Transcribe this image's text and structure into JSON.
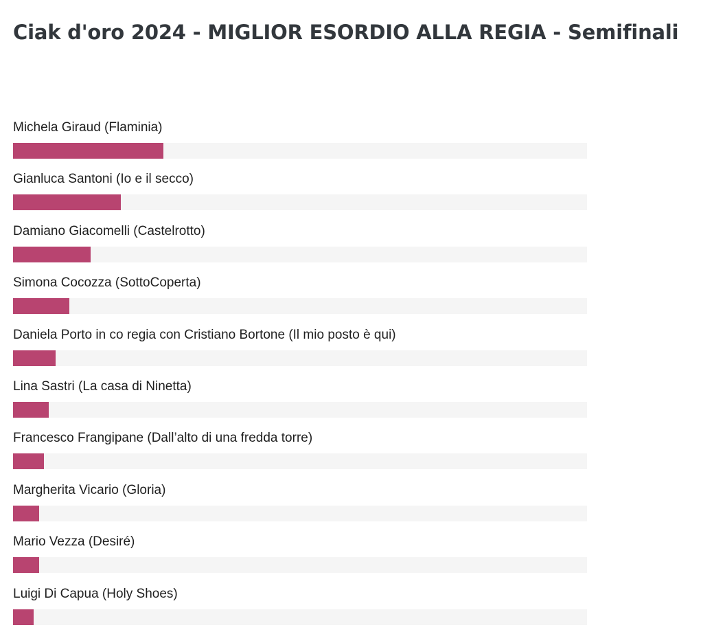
{
  "title": "Ciak d'oro 2024 - MIGLIOR ESORDIO ALLA REGIA - Semifinali",
  "colors": {
    "bar": "#b84470",
    "track": "#f5f5f5"
  },
  "chart_data": {
    "type": "bar",
    "orientation": "horizontal",
    "title": "Ciak d'oro 2024 - MIGLIOR ESORDIO ALLA REGIA - Semifinali",
    "xlabel": "",
    "ylabel": "",
    "xlim": [
      0,
      100
    ],
    "grid": false,
    "categories": [
      "Michela Giraud (Flaminia)",
      "Gianluca Santoni (Io e il secco)",
      "Damiano Giacomelli (Castelrotto)",
      "Simona Cocozza (SottoCoperta)",
      "Daniela Porto in co regia con Cristiano Bortone (Il mio posto è qui)",
      "Lina Sastri (La casa di Ninetta)",
      "Francesco Frangipane (Dall’alto di una fredda torre)",
      "Margherita Vicario (Gloria)",
      "Mario Vezza (Desiré)",
      "Luigi Di Capua (Holy Shoes)"
    ],
    "values": [
      26.2,
      18.8,
      13.5,
      9.8,
      7.4,
      6.2,
      5.4,
      4.6,
      4.6,
      3.6
    ]
  }
}
